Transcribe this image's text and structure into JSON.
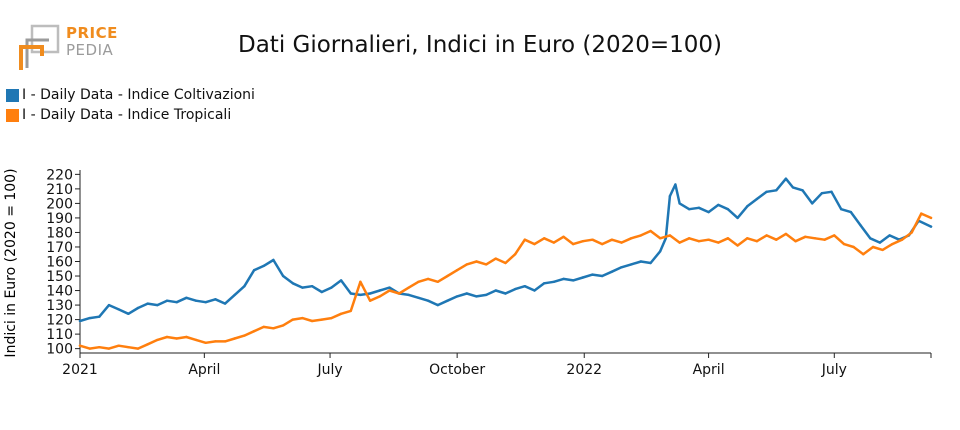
{
  "logo": {
    "word1": "PRICE",
    "word2": "PEDIA",
    "brand_color": "#f08c1e",
    "secondary_color": "#9b9b9b"
  },
  "chart_data": {
    "type": "line",
    "title": "Dati Giornalieri, Indici in Euro (2020=100)",
    "ylabel": "Indici in Euro (2020 = 100)",
    "xlabel": "",
    "ylim": [
      97,
      223
    ],
    "xlim": [
      "2021-01-01",
      "2022-09-09"
    ],
    "yticks": [
      100,
      110,
      120,
      130,
      140,
      150,
      160,
      170,
      180,
      190,
      200,
      210,
      220
    ],
    "xticks": [
      {
        "date": "2021-01-01",
        "label": "2021"
      },
      {
        "date": "2021-04-01",
        "label": "April"
      },
      {
        "date": "2021-07-01",
        "label": "July"
      },
      {
        "date": "2021-10-01",
        "label": "October"
      },
      {
        "date": "2022-01-01",
        "label": "2022"
      },
      {
        "date": "2022-04-01",
        "label": "April"
      },
      {
        "date": "2022-07-01",
        "label": "July"
      }
    ],
    "legend_position": "top-left",
    "grid": false,
    "series": [
      {
        "name": "I - Daily Data - Indice Coltivazioni",
        "color": "#1f77b4",
        "points": [
          [
            "2021-01-01",
            119
          ],
          [
            "2021-01-08",
            121
          ],
          [
            "2021-01-15",
            122
          ],
          [
            "2021-01-22",
            130
          ],
          [
            "2021-01-29",
            127
          ],
          [
            "2021-02-05",
            124
          ],
          [
            "2021-02-12",
            128
          ],
          [
            "2021-02-19",
            131
          ],
          [
            "2021-02-26",
            130
          ],
          [
            "2021-03-05",
            133
          ],
          [
            "2021-03-12",
            132
          ],
          [
            "2021-03-19",
            135
          ],
          [
            "2021-03-26",
            133
          ],
          [
            "2021-04-02",
            132
          ],
          [
            "2021-04-09",
            134
          ],
          [
            "2021-04-16",
            131
          ],
          [
            "2021-04-23",
            137
          ],
          [
            "2021-04-30",
            143
          ],
          [
            "2021-05-07",
            154
          ],
          [
            "2021-05-14",
            157
          ],
          [
            "2021-05-21",
            161
          ],
          [
            "2021-05-28",
            150
          ],
          [
            "2021-06-04",
            145
          ],
          [
            "2021-06-11",
            142
          ],
          [
            "2021-06-18",
            143
          ],
          [
            "2021-06-25",
            139
          ],
          [
            "2021-07-02",
            142
          ],
          [
            "2021-07-09",
            147
          ],
          [
            "2021-07-16",
            138
          ],
          [
            "2021-07-23",
            137
          ],
          [
            "2021-07-30",
            138
          ],
          [
            "2021-08-06",
            140
          ],
          [
            "2021-08-13",
            142
          ],
          [
            "2021-08-20",
            138
          ],
          [
            "2021-08-27",
            137
          ],
          [
            "2021-09-03",
            135
          ],
          [
            "2021-09-10",
            133
          ],
          [
            "2021-09-17",
            130
          ],
          [
            "2021-09-24",
            133
          ],
          [
            "2021-10-01",
            136
          ],
          [
            "2021-10-08",
            138
          ],
          [
            "2021-10-15",
            136
          ],
          [
            "2021-10-22",
            137
          ],
          [
            "2021-10-29",
            140
          ],
          [
            "2021-11-05",
            138
          ],
          [
            "2021-11-12",
            141
          ],
          [
            "2021-11-19",
            143
          ],
          [
            "2021-11-26",
            140
          ],
          [
            "2021-12-03",
            145
          ],
          [
            "2021-12-10",
            146
          ],
          [
            "2021-12-17",
            148
          ],
          [
            "2021-12-24",
            147
          ],
          [
            "2021-12-31",
            149
          ],
          [
            "2022-01-07",
            151
          ],
          [
            "2022-01-14",
            150
          ],
          [
            "2022-01-21",
            153
          ],
          [
            "2022-01-28",
            156
          ],
          [
            "2022-02-04",
            158
          ],
          [
            "2022-02-11",
            160
          ],
          [
            "2022-02-18",
            159
          ],
          [
            "2022-02-25",
            167
          ],
          [
            "2022-03-01",
            176
          ],
          [
            "2022-03-04",
            205
          ],
          [
            "2022-03-08",
            213
          ],
          [
            "2022-03-11",
            200
          ],
          [
            "2022-03-18",
            196
          ],
          [
            "2022-03-25",
            197
          ],
          [
            "2022-04-01",
            194
          ],
          [
            "2022-04-08",
            199
          ],
          [
            "2022-04-15",
            196
          ],
          [
            "2022-04-22",
            190
          ],
          [
            "2022-04-29",
            198
          ],
          [
            "2022-05-06",
            203
          ],
          [
            "2022-05-13",
            208
          ],
          [
            "2022-05-20",
            209
          ],
          [
            "2022-05-27",
            217
          ],
          [
            "2022-06-01",
            211
          ],
          [
            "2022-06-08",
            209
          ],
          [
            "2022-06-15",
            200
          ],
          [
            "2022-06-22",
            207
          ],
          [
            "2022-06-29",
            208
          ],
          [
            "2022-07-06",
            196
          ],
          [
            "2022-07-13",
            194
          ],
          [
            "2022-07-20",
            185
          ],
          [
            "2022-07-27",
            176
          ],
          [
            "2022-08-03",
            173
          ],
          [
            "2022-08-10",
            178
          ],
          [
            "2022-08-17",
            175
          ],
          [
            "2022-08-24",
            178
          ],
          [
            "2022-08-31",
            188
          ],
          [
            "2022-09-09",
            184
          ]
        ]
      },
      {
        "name": "I - Daily Data - Indice Tropicali",
        "color": "#ff7f0e",
        "points": [
          [
            "2021-01-01",
            102
          ],
          [
            "2021-01-08",
            100
          ],
          [
            "2021-01-15",
            101
          ],
          [
            "2021-01-22",
            100
          ],
          [
            "2021-01-29",
            102
          ],
          [
            "2021-02-05",
            101
          ],
          [
            "2021-02-12",
            100
          ],
          [
            "2021-02-19",
            103
          ],
          [
            "2021-02-26",
            106
          ],
          [
            "2021-03-05",
            108
          ],
          [
            "2021-03-12",
            107
          ],
          [
            "2021-03-19",
            108
          ],
          [
            "2021-03-26",
            106
          ],
          [
            "2021-04-02",
            104
          ],
          [
            "2021-04-09",
            105
          ],
          [
            "2021-04-16",
            105
          ],
          [
            "2021-04-23",
            107
          ],
          [
            "2021-04-30",
            109
          ],
          [
            "2021-05-07",
            112
          ],
          [
            "2021-05-14",
            115
          ],
          [
            "2021-05-21",
            114
          ],
          [
            "2021-05-28",
            116
          ],
          [
            "2021-06-04",
            120
          ],
          [
            "2021-06-11",
            121
          ],
          [
            "2021-06-18",
            119
          ],
          [
            "2021-06-25",
            120
          ],
          [
            "2021-07-02",
            121
          ],
          [
            "2021-07-09",
            124
          ],
          [
            "2021-07-16",
            126
          ],
          [
            "2021-07-23",
            146
          ],
          [
            "2021-07-30",
            133
          ],
          [
            "2021-08-06",
            136
          ],
          [
            "2021-08-13",
            140
          ],
          [
            "2021-08-20",
            138
          ],
          [
            "2021-08-27",
            142
          ],
          [
            "2021-09-03",
            146
          ],
          [
            "2021-09-10",
            148
          ],
          [
            "2021-09-17",
            146
          ],
          [
            "2021-09-24",
            150
          ],
          [
            "2021-10-01",
            154
          ],
          [
            "2021-10-08",
            158
          ],
          [
            "2021-10-15",
            160
          ],
          [
            "2021-10-22",
            158
          ],
          [
            "2021-10-29",
            162
          ],
          [
            "2021-11-05",
            159
          ],
          [
            "2021-11-12",
            165
          ],
          [
            "2021-11-19",
            175
          ],
          [
            "2021-11-26",
            172
          ],
          [
            "2021-12-03",
            176
          ],
          [
            "2021-12-10",
            173
          ],
          [
            "2021-12-17",
            177
          ],
          [
            "2021-12-24",
            172
          ],
          [
            "2021-12-31",
            174
          ],
          [
            "2022-01-07",
            175
          ],
          [
            "2022-01-14",
            172
          ],
          [
            "2022-01-21",
            175
          ],
          [
            "2022-01-28",
            173
          ],
          [
            "2022-02-04",
            176
          ],
          [
            "2022-02-11",
            178
          ],
          [
            "2022-02-18",
            181
          ],
          [
            "2022-02-25",
            176
          ],
          [
            "2022-03-04",
            178
          ],
          [
            "2022-03-11",
            173
          ],
          [
            "2022-03-18",
            176
          ],
          [
            "2022-03-25",
            174
          ],
          [
            "2022-04-01",
            175
          ],
          [
            "2022-04-08",
            173
          ],
          [
            "2022-04-15",
            176
          ],
          [
            "2022-04-22",
            171
          ],
          [
            "2022-04-29",
            176
          ],
          [
            "2022-05-06",
            174
          ],
          [
            "2022-05-13",
            178
          ],
          [
            "2022-05-20",
            175
          ],
          [
            "2022-05-27",
            179
          ],
          [
            "2022-06-03",
            174
          ],
          [
            "2022-06-10",
            177
          ],
          [
            "2022-06-17",
            176
          ],
          [
            "2022-06-24",
            175
          ],
          [
            "2022-07-01",
            178
          ],
          [
            "2022-07-08",
            172
          ],
          [
            "2022-07-15",
            170
          ],
          [
            "2022-07-22",
            165
          ],
          [
            "2022-07-29",
            170
          ],
          [
            "2022-08-05",
            168
          ],
          [
            "2022-08-12",
            172
          ],
          [
            "2022-08-19",
            175
          ],
          [
            "2022-08-26",
            180
          ],
          [
            "2022-09-02",
            193
          ],
          [
            "2022-09-09",
            190
          ]
        ]
      }
    ]
  }
}
